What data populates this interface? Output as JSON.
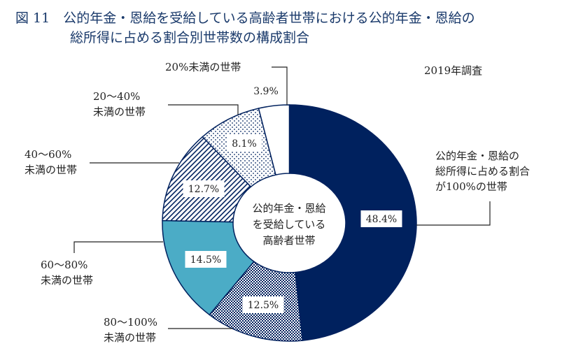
{
  "title_line1": "図 11　公的年金・恩給を受給している高齢者世帯における公的年金・恩給の",
  "title_line2": "総所得に占める割合別世帯数の構成割合",
  "note": "2019年調査",
  "center_label": [
    "公的年金・恩給",
    "を受給している",
    "高齢者世帯"
  ],
  "chart_data": {
    "type": "pie",
    "donut": true,
    "start": "top, clockwise",
    "unit": "%",
    "slices": [
      {
        "label": [
          "公的年金・恩給の",
          "総所得に占める割合",
          "が100%の世帯"
        ],
        "value": 48.4,
        "value_label": "48.4%",
        "color": "#00215e",
        "pattern": "solid"
      },
      {
        "label": [
          "80～100%",
          "未満の世帯"
        ],
        "value": 12.5,
        "value_label": "12.5%",
        "color": "#00215e",
        "pattern": "checker"
      },
      {
        "label": [
          "60～80%",
          "未満の世帯"
        ],
        "value": 14.5,
        "value_label": "14.5%",
        "color": "#4bacc6",
        "pattern": "solid"
      },
      {
        "label": [
          "40～60%",
          "未満の世帯"
        ],
        "value": 12.7,
        "value_label": "12.7%",
        "color": "#00215e",
        "pattern": "diagonal"
      },
      {
        "label": [
          "20～40%",
          "未満の世帯"
        ],
        "value": 8.1,
        "value_label": "8.1%",
        "color": "#00215e",
        "pattern": "dots"
      },
      {
        "label": [
          "20%未満の世帯"
        ],
        "value": 3.9,
        "value_label": "3.9%",
        "color": "#ffffff",
        "pattern": "solid"
      }
    ]
  }
}
